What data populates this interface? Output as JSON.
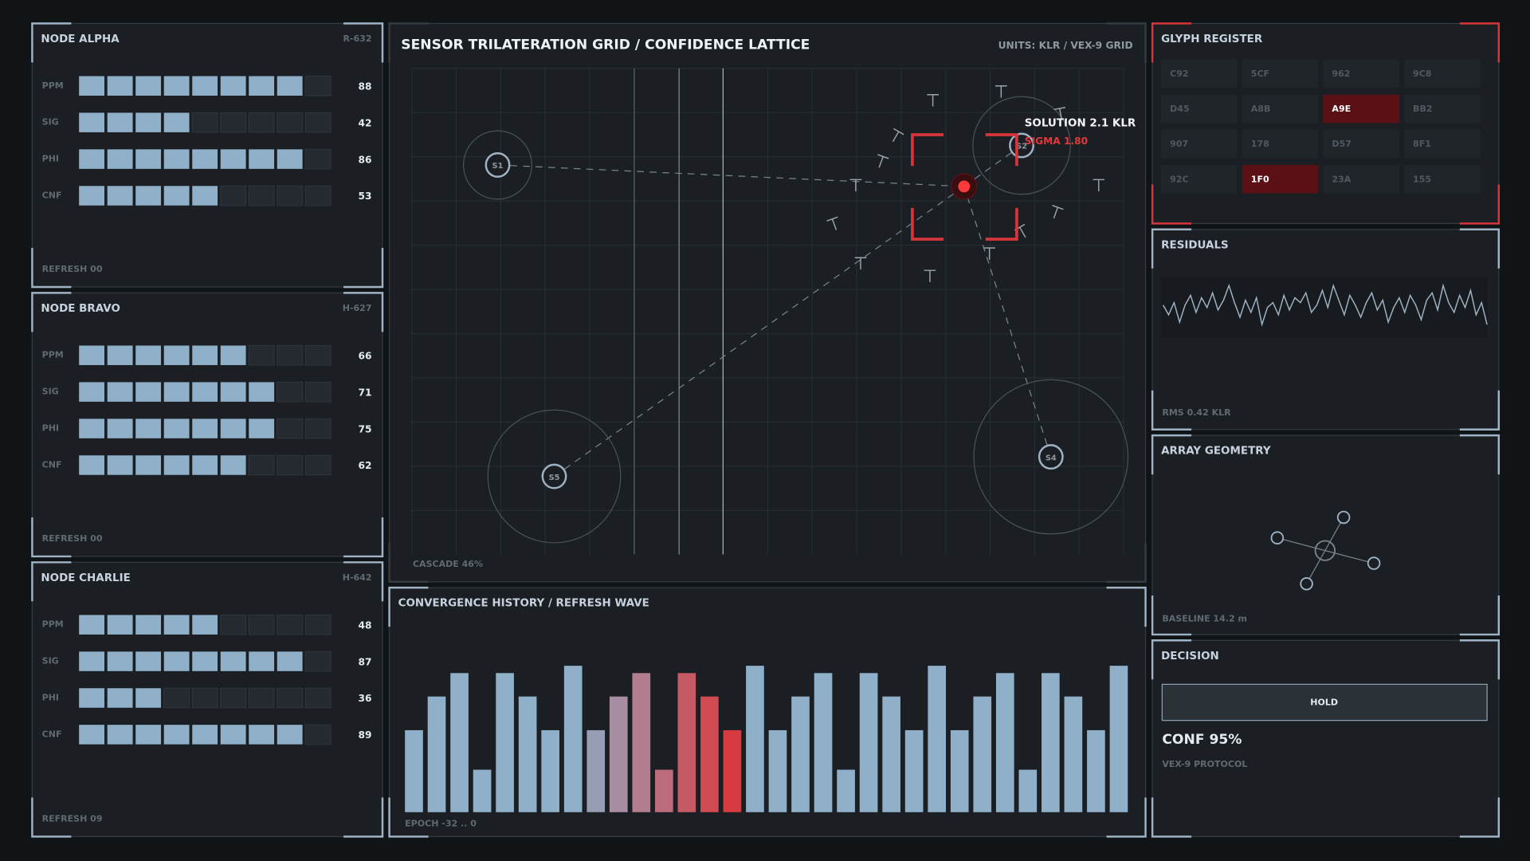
{
  "nodes": [
    {
      "title": "NODE ALPHA",
      "id": "R-632",
      "metrics": [
        {
          "label": "PPM",
          "value": 88
        },
        {
          "label": "SIG",
          "value": 42
        },
        {
          "label": "PHI",
          "value": 86
        },
        {
          "label": "CNF",
          "value": 53
        }
      ],
      "footer": "REFRESH 00"
    },
    {
      "title": "NODE BRAVO",
      "id": "H-627",
      "metrics": [
        {
          "label": "PPM",
          "value": 66
        },
        {
          "label": "SIG",
          "value": 71
        },
        {
          "label": "PHI",
          "value": 75
        },
        {
          "label": "CNF",
          "value": 62
        }
      ],
      "footer": "REFRESH 00"
    },
    {
      "title": "NODE CHARLIE",
      "id": "H-642",
      "metrics": [
        {
          "label": "PPM",
          "value": 48
        },
        {
          "label": "SIG",
          "value": 87
        },
        {
          "label": "PHI",
          "value": 36
        },
        {
          "label": "CNF",
          "value": 89
        }
      ],
      "footer": "REFRESH 09"
    }
  ],
  "meter_range": [
    0,
    100
  ],
  "map": {
    "title": "SENSOR TRILATERATION GRID / CONFIDENCE LATTICE",
    "units": "UNITS: KLR / VEX-9 GRID",
    "sensors": [
      "S1",
      "S2",
      "S5",
      "S4"
    ],
    "solution": "SOLUTION 2.1 KLR",
    "sigma": "SIGMA 1.80",
    "footer": "CASCADE 46%"
  },
  "convergence": {
    "title": "CONVERGENCE HISTORY / REFRESH WAVE",
    "ylim": [
      0,
      100
    ],
    "values": [
      56,
      79,
      95,
      29,
      95,
      79,
      56,
      100,
      56,
      79,
      95,
      29,
      95,
      79,
      56,
      100,
      56,
      79,
      95,
      29,
      95,
      79,
      56,
      100,
      56,
      79,
      95,
      29,
      95,
      79,
      56,
      100
    ],
    "colors": [
      "#8fb0c8",
      "#8fb0c8",
      "#8fb0c8",
      "#8fb0c8",
      "#8fb0c8",
      "#8fb0c8",
      "#8fb0c8",
      "#8fb0c8",
      "#979db4",
      "#a88ea2",
      "#b27d8e",
      "#bb6d7b",
      "#c65a64",
      "#cf4a51",
      "#d83b3f",
      "#8fb0c8",
      "#8fb0c8",
      "#8fb0c8",
      "#8fb0c8",
      "#8fb0c8",
      "#8fb0c8",
      "#8fb0c8",
      "#8fb0c8",
      "#8fb0c8",
      "#8fb0c8",
      "#8fb0c8",
      "#8fb0c8",
      "#8fb0c8",
      "#8fb0c8",
      "#8fb0c8",
      "#8fb0c8",
      "#8fb0c8"
    ],
    "footer": "EPOCH -32 .. 0"
  },
  "glyphs": {
    "title": "GLYPH REGISTER",
    "cells": [
      {
        "code": "C92",
        "active": false
      },
      {
        "code": "5CF",
        "active": false
      },
      {
        "code": "962",
        "active": false
      },
      {
        "code": "9C8",
        "active": false
      },
      {
        "code": "D45",
        "active": false
      },
      {
        "code": "A8B",
        "active": false
      },
      {
        "code": "A9E",
        "active": true
      },
      {
        "code": "BB2",
        "active": false
      },
      {
        "code": "907",
        "active": false
      },
      {
        "code": "178",
        "active": false
      },
      {
        "code": "D57",
        "active": false
      },
      {
        "code": "8F1",
        "active": false
      },
      {
        "code": "92C",
        "active": false
      },
      {
        "code": "1F0",
        "active": true
      },
      {
        "code": "23A",
        "active": false
      },
      {
        "code": "155",
        "active": false
      }
    ]
  },
  "residuals": {
    "title": "RESIDUALS",
    "ylim": [
      -1,
      1
    ],
    "values": [
      0.1,
      -0.3,
      0.2,
      -0.6,
      0.1,
      0.5,
      -0.2,
      0.4,
      0.0,
      0.6,
      -0.1,
      0.3,
      0.9,
      0.2,
      -0.4,
      0.3,
      -0.2,
      0.4,
      -0.7,
      0.0,
      0.2,
      -0.3,
      0.5,
      -0.1,
      0.4,
      0.2,
      0.6,
      -0.2,
      0.1,
      0.7,
      0.0,
      0.9,
      0.3,
      -0.3,
      0.5,
      0.1,
      -0.4,
      0.2,
      0.6,
      -0.1,
      0.3,
      -0.6,
      0.0,
      0.4,
      -0.2,
      0.5,
      0.1,
      -0.5,
      0.3,
      0.6,
      -0.1,
      0.9,
      0.2,
      -0.2,
      0.5,
      0.0,
      0.7,
      -0.3,
      0.2,
      -0.7
    ],
    "footer": "RMS 0.42 KLR"
  },
  "array": {
    "title": "ARRAY GEOMETRY",
    "footer": "BASELINE 14.2 m"
  },
  "decision": {
    "title": "DECISION",
    "button": "HOLD",
    "confidence": "CONF 95%",
    "protocol": "VEX-9 PROTOCOL"
  }
}
